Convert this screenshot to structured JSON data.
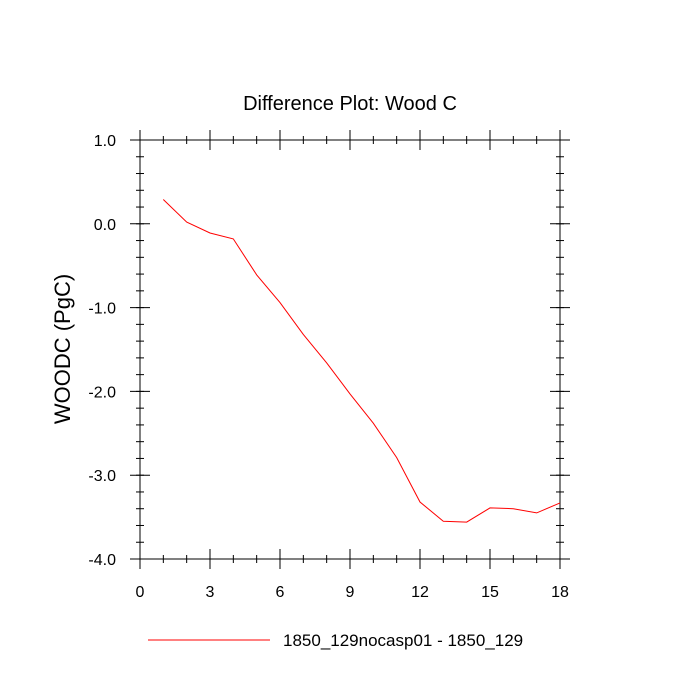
{
  "chart_data": {
    "type": "line",
    "title": "Difference Plot: Wood C",
    "xlabel": "",
    "ylabel": "WOODC  (PgC)",
    "xlim": [
      0,
      18
    ],
    "ylim": [
      -4.0,
      1.0
    ],
    "xticks": [
      0,
      3,
      6,
      9,
      12,
      15,
      18
    ],
    "xtick_labels": [
      "0",
      "3",
      "6",
      "9",
      "12",
      "15",
      "18"
    ],
    "yticks": [
      1.0,
      0.0,
      -1.0,
      -2.0,
      -3.0,
      -4.0
    ],
    "ytick_labels": [
      "1.0",
      "0.0",
      "-1.0",
      "-2.0",
      "-3.0",
      "-4.0"
    ],
    "grid": false,
    "legend_position": "bottom",
    "series": [
      {
        "name": "1850_129nocasp01 - 1850_129",
        "color": "#ff0000",
        "x": [
          1,
          2,
          3,
          4,
          5,
          6,
          7,
          8,
          9,
          10,
          11,
          12,
          13,
          14,
          15,
          16,
          17,
          18
        ],
        "y": [
          0.29,
          0.02,
          -0.11,
          -0.18,
          -0.61,
          -0.94,
          -1.32,
          -1.66,
          -2.03,
          -2.38,
          -2.79,
          -3.32,
          -3.55,
          -3.56,
          -3.39,
          -3.4,
          -3.45,
          -3.33
        ]
      }
    ]
  }
}
